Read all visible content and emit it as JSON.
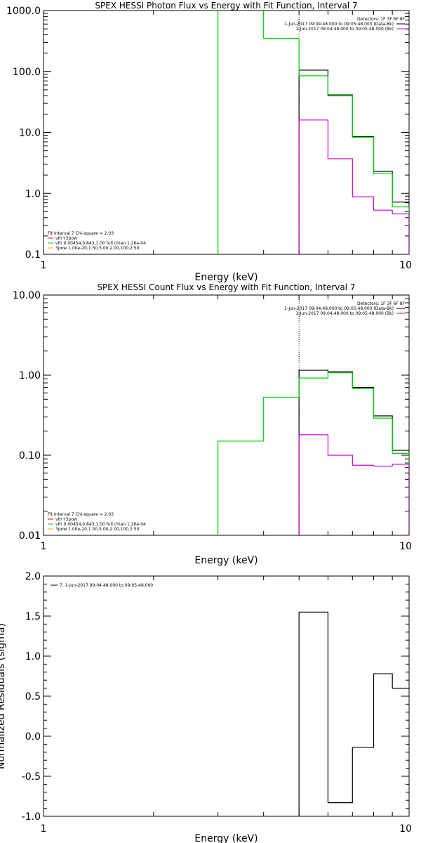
{
  "colors": {
    "black": "#000000",
    "green": "#00d000",
    "magenta": "#d000d0",
    "red": "#ff0000",
    "orange": "#ff9a00"
  },
  "chart_data": [
    {
      "type": "line",
      "title": "SPEX HESSI Photon Flux vs Energy with Fit Function, Interval 7",
      "xlabel": "Energy (keV)",
      "ylabel": "",
      "x_scale": "log",
      "y_scale": "log",
      "xlim": [
        1,
        10
      ],
      "ylim": [
        0.1,
        1000
      ],
      "x_ticks": [
        {
          "v": 1,
          "label": "1"
        },
        {
          "v": 10,
          "label": "10"
        }
      ],
      "y_ticks": [
        {
          "v": 0.1,
          "label": "0.1"
        },
        {
          "v": 1,
          "label": "1.0"
        },
        {
          "v": 10,
          "label": "10.0"
        },
        {
          "v": 100,
          "label": "100.0"
        },
        {
          "v": 1000,
          "label": "1000.0"
        }
      ],
      "marker_x": 5.0,
      "legend_top_right": [
        "Detectors: 1F 3F 6F 8F",
        "1-Jun-2017 09:04:48.000 to 09:05:48.000 (Data-Bk)",
        "1-Jun-2017 09:04:48.000 to 09:05:48.000 (Bk)"
      ],
      "legend_bottom_left": [
        "Fit Interval  7   Chi-square = 2.03",
        "vth+3pow",
        "vth 0.00454,0.843,1.00  full chian 1.26e-04",
        "3pow 1.00e-20,1.50,5.00,2.00,100,2.50"
      ],
      "series": [
        {
          "name": "Data-Bk",
          "color": "black",
          "edges": [
            5,
            6,
            7,
            8,
            9,
            10
          ],
          "values": [
            105,
            40,
            8.5,
            2.3,
            0.72
          ]
        },
        {
          "name": "vth+3pow",
          "color": "green",
          "edges": [
            3,
            4,
            5,
            6,
            7,
            8,
            9,
            10
          ],
          "values": [
            5000,
            350,
            85,
            42,
            8.3,
            2.1,
            0.6
          ]
        },
        {
          "name": "Bk",
          "color": "magenta",
          "edges": [
            5,
            6,
            7,
            8,
            9,
            10
          ],
          "values": [
            16,
            3.7,
            0.88,
            0.53,
            0.46
          ]
        }
      ]
    },
    {
      "type": "line",
      "title": "SPEX HESSI Count Flux vs Energy with Fit Function, Interval 7",
      "xlabel": "Energy (keV)",
      "ylabel": "",
      "x_scale": "log",
      "y_scale": "log",
      "xlim": [
        1,
        10
      ],
      "ylim": [
        0.01,
        10
      ],
      "x_ticks": [
        {
          "v": 1,
          "label": "1"
        },
        {
          "v": 10,
          "label": "10"
        }
      ],
      "y_ticks": [
        {
          "v": 0.01,
          "label": "0.01"
        },
        {
          "v": 0.1,
          "label": "0.10"
        },
        {
          "v": 1,
          "label": "1.00"
        },
        {
          "v": 10,
          "label": "10.00"
        }
      ],
      "marker_x": 5.0,
      "legend_top_right": [
        "Detectors: 1F 3F 6F 8F",
        "1-Jun-2017 09:04:48.000 to 09:05:48.000 (Data-Bk)",
        "1-Jun-2017 09:04:48.000 to 09:05:48.000 (Bk)"
      ],
      "legend_bottom_left": [
        "Fit Interval  7   Chi-square = 2.03",
        "vth+3pow",
        "vth 0.00454,0.843,1.00  full chian 1.26e-04",
        "3pow 1.00e-20,1.50,5.00,2.00,100,2.50"
      ],
      "series": [
        {
          "name": "Data-Bk",
          "color": "black",
          "edges": [
            5,
            6,
            7,
            8,
            9,
            10
          ],
          "values": [
            1.15,
            1.1,
            0.7,
            0.31,
            0.115
          ]
        },
        {
          "name": "vth+3pow",
          "color": "green",
          "edges": [
            3,
            4,
            5,
            6,
            7,
            8,
            9,
            10
          ],
          "values": [
            0.15,
            0.53,
            0.92,
            1.07,
            0.68,
            0.29,
            0.105
          ]
        },
        {
          "name": "Bk",
          "color": "magenta",
          "edges": [
            5,
            6,
            7,
            8,
            9,
            10
          ],
          "values": [
            0.18,
            0.1,
            0.075,
            0.073,
            0.077
          ]
        }
      ]
    },
    {
      "type": "line",
      "title": "",
      "xlabel": "Energy (keV)",
      "ylabel": "Normalized Residuals (sigma)",
      "x_scale": "log",
      "y_scale": "linear",
      "xlim": [
        1,
        10
      ],
      "ylim": [
        -1.0,
        2.0
      ],
      "x_ticks": [
        {
          "v": 1,
          "label": "1"
        },
        {
          "v": 10,
          "label": "10"
        }
      ],
      "y_ticks": [
        {
          "v": -1.0,
          "label": "-1.0"
        },
        {
          "v": -0.5,
          "label": "-0.5"
        },
        {
          "v": 0.0,
          "label": "0.0"
        },
        {
          "v": 0.5,
          "label": "0.5"
        },
        {
          "v": 1.0,
          "label": "1.0"
        },
        {
          "v": 1.5,
          "label": "1.5"
        },
        {
          "v": 2.0,
          "label": "2.0"
        }
      ],
      "legend_top_left": [
        "7.  1-Jun-2017 09:04:48.000 to 09:05:48.000"
      ],
      "series": [
        {
          "name": "7.  1-Jun-2017 09:04:48.000 to 09:05:48.000",
          "color": "black",
          "edges": [
            5,
            6,
            7,
            8,
            9,
            10
          ],
          "values": [
            1.55,
            -0.83,
            -0.14,
            0.78,
            0.6
          ]
        }
      ]
    }
  ]
}
